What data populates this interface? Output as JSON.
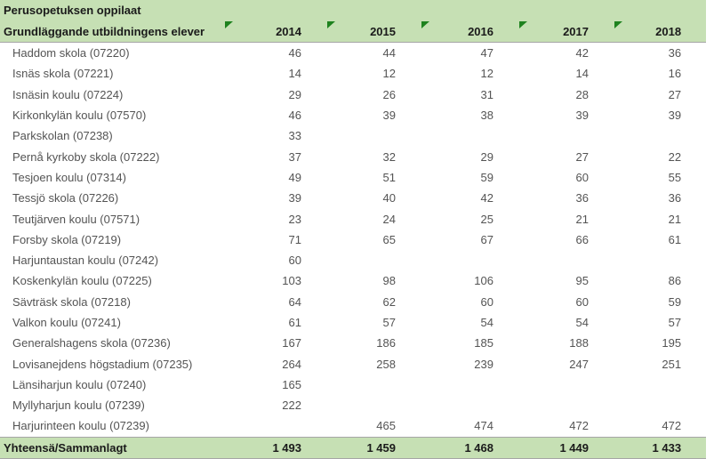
{
  "table": {
    "title_fi": "Perusopetuksen oppilaat",
    "title_sv": "Grundläggande utbildningens elever",
    "years": [
      "2014",
      "2015",
      "2016",
      "2017",
      "2018"
    ],
    "rows": [
      {
        "name": "Haddom skola (07220)",
        "values": [
          "46",
          "44",
          "47",
          "42",
          "36"
        ]
      },
      {
        "name": "Isnäs skola (07221)",
        "values": [
          "14",
          "12",
          "12",
          "14",
          "16"
        ]
      },
      {
        "name": "Isnäsin koulu (07224)",
        "values": [
          "29",
          "26",
          "31",
          "28",
          "27"
        ]
      },
      {
        "name": "Kirkonkylän koulu (07570)",
        "values": [
          "46",
          "39",
          "38",
          "39",
          "39"
        ]
      },
      {
        "name": "Parkskolan (07238)",
        "values": [
          "33",
          "",
          "",
          "",
          ""
        ]
      },
      {
        "name": "Pernå kyrkoby skola (07222)",
        "values": [
          "37",
          "32",
          "29",
          "27",
          "22"
        ]
      },
      {
        "name": "Tesjoen koulu (07314)",
        "values": [
          "49",
          "51",
          "59",
          "60",
          "55"
        ]
      },
      {
        "name": "Tessjö skola (07226)",
        "values": [
          "39",
          "40",
          "42",
          "36",
          "36"
        ]
      },
      {
        "name": "Teutjärven koulu (07571)",
        "values": [
          "23",
          "24",
          "25",
          "21",
          "21"
        ]
      },
      {
        "name": "Forsby skola (07219)",
        "values": [
          "71",
          "65",
          "67",
          "66",
          "61"
        ]
      },
      {
        "name": "Harjuntaustan koulu (07242)",
        "values": [
          "60",
          "",
          "",
          "",
          ""
        ]
      },
      {
        "name": "Koskenkylän koulu (07225)",
        "values": [
          "103",
          "98",
          "106",
          "95",
          "86"
        ]
      },
      {
        "name": "Sävträsk skola (07218)",
        "values": [
          "64",
          "62",
          "60",
          "60",
          "59"
        ]
      },
      {
        "name": "Valkon koulu (07241)",
        "values": [
          "61",
          "57",
          "54",
          "54",
          "57"
        ]
      },
      {
        "name": "Generalshagens skola (07236)",
        "values": [
          "167",
          "186",
          "185",
          "188",
          "195"
        ]
      },
      {
        "name": "Lovisanejdens högstadium (07235)",
        "values": [
          "264",
          "258",
          "239",
          "247",
          "251"
        ]
      },
      {
        "name": "Länsiharjun koulu (07240)",
        "values": [
          "165",
          "",
          "",
          "",
          ""
        ]
      },
      {
        "name": "Myllyharjun koulu (07239)",
        "values": [
          "222",
          "",
          "",
          "",
          ""
        ]
      },
      {
        "name": "Harjurinteen koulu (07239)",
        "values": [
          "",
          "465",
          "474",
          "472",
          "472"
        ]
      }
    ],
    "total": {
      "label": "Yhteensä/Sammanlagt",
      "values": [
        "1 493",
        "1 459",
        "1 468",
        "1 449",
        "1 433"
      ]
    }
  },
  "icons": {
    "corner_flag": "corner-flag-icon"
  },
  "colors": {
    "band_green": "#c6e0b4",
    "flag_green": "#1e821e",
    "border_gray": "#a6a6a6",
    "body_text": "#545454",
    "bold_text": "#1a1a1a"
  }
}
